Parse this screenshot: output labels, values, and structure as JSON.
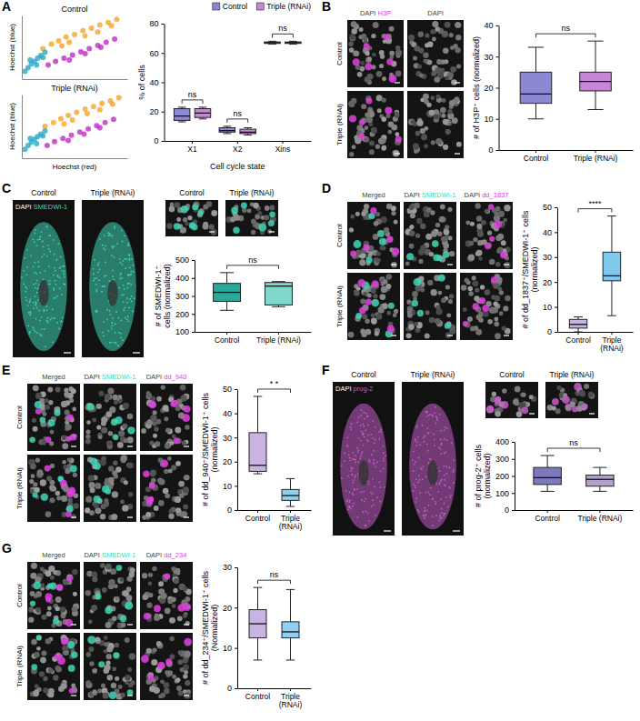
{
  "chart_data": [
    {
      "panel": "A",
      "type": "scatter",
      "title": "Control",
      "y_label": "Hoechst (blue)",
      "xlim": [
        0,
        100
      ],
      "ylim": [
        0,
        100
      ],
      "tick_labels": false,
      "series": [
        {
          "color": "#f4a52a",
          "x": [
            20,
            28,
            35,
            42,
            50,
            58,
            66,
            74,
            82,
            90,
            45,
            60,
            72,
            85,
            38
          ],
          "y": [
            48,
            55,
            60,
            66,
            70,
            76,
            80,
            85,
            89,
            94,
            58,
            68,
            74,
            84,
            52
          ]
        },
        {
          "color": "#2aa7c8",
          "x": [
            3,
            6,
            9,
            12,
            15,
            18,
            22,
            8,
            14,
            20
          ],
          "y": [
            12,
            18,
            24,
            28,
            33,
            37,
            42,
            30,
            22,
            34
          ]
        },
        {
          "color": "#c02cc6",
          "x": [
            25,
            32,
            40,
            48,
            56,
            64,
            72,
            80,
            88,
            45,
            60,
            75
          ],
          "y": [
            22,
            28,
            33,
            38,
            43,
            48,
            53,
            58,
            63,
            30,
            40,
            50
          ]
        }
      ]
    },
    {
      "type": "scatter",
      "title": "Triple (RNAi)",
      "y_label": "Hoechst (blue)",
      "x_label": "Hoechst (red)",
      "xlim": [
        0,
        100
      ],
      "ylim": [
        0,
        100
      ],
      "tick_labels": false,
      "series": [
        {
          "color": "#f4a52a",
          "x": [
            22,
            30,
            37,
            44,
            52,
            60,
            68,
            76,
            84,
            92,
            48,
            62,
            74,
            86,
            40
          ],
          "y": [
            50,
            56,
            62,
            67,
            72,
            77,
            81,
            86,
            90,
            95,
            60,
            70,
            76,
            85,
            54
          ]
        },
        {
          "color": "#2aa7c8",
          "x": [
            3,
            6,
            9,
            12,
            15,
            18,
            22,
            8,
            14,
            20
          ],
          "y": [
            14,
            20,
            25,
            30,
            34,
            38,
            43,
            31,
            23,
            35
          ]
        },
        {
          "color": "#c02cc6",
          "x": [
            24,
            31,
            39,
            47,
            55,
            63,
            71,
            79,
            87,
            44,
            59,
            74
          ],
          "y": [
            20,
            26,
            31,
            36,
            41,
            46,
            51,
            56,
            61,
            28,
            38,
            48
          ]
        }
      ]
    },
    {
      "type": "box",
      "y_label": "% of cells",
      "x_label": "Cell cycle state",
      "categories": [
        "X1",
        "X2",
        "Xins"
      ],
      "ylim": [
        0,
        80
      ],
      "yticks": [
        0,
        20,
        40,
        60,
        80
      ],
      "legend": "top-right",
      "series": [
        {
          "name": "Control",
          "color": "#8c88d4",
          "min": [
            13,
            5,
            66
          ],
          "q1": [
            14,
            6,
            66.5
          ],
          "median": [
            17,
            7,
            67
          ],
          "q3": [
            22,
            9,
            67.5
          ],
          "max": [
            23,
            10,
            68
          ]
        },
        {
          "name": "Triple (RNAi)",
          "color": "#c886d8",
          "min": [
            15,
            4,
            66
          ],
          "q1": [
            16,
            5,
            66.5
          ],
          "median": [
            19,
            6,
            67
          ],
          "q3": [
            22,
            8,
            67.5
          ],
          "max": [
            23,
            9,
            68
          ]
        }
      ],
      "significance": [
        "ns",
        "ns",
        "ns"
      ]
    },
    {
      "panel": "B",
      "type": "box",
      "images": {
        "columns": [
          "DAPI H3P",
          "DAPI"
        ],
        "rows": [
          "Control",
          "Triple (RNAi)"
        ]
      },
      "y_label": "# of H3P⁺ cells (normalized)",
      "categories": [
        "Control",
        "Triple (RNAi)"
      ],
      "ylim": [
        0,
        40
      ],
      "yticks": [
        0,
        10,
        20,
        30,
        40
      ],
      "series": [
        {
          "colors": [
            "#8c88d4",
            "#c886d8"
          ],
          "min": [
            10,
            13
          ],
          "q1": [
            15,
            19
          ],
          "median": [
            18,
            22
          ],
          "q3": [
            25,
            25
          ],
          "max": [
            33,
            35
          ]
        }
      ],
      "significance": [
        "ns"
      ]
    },
    {
      "panel": "C",
      "type": "box",
      "worms": {
        "titles": [
          "Control",
          "Triple (RNAi)"
        ],
        "stain": "DAPI SMEDWI-1"
      },
      "crops": {
        "titles": [
          "Control",
          "Triple (RNAi)"
        ]
      },
      "y_label": "# of SMEDWI-1⁺ cells (normalized)",
      "categories": [
        "Control",
        "Triple (RNAi)"
      ],
      "ylim": [
        100,
        500
      ],
      "yticks": [
        100,
        200,
        300,
        400,
        500
      ],
      "series": [
        {
          "colors": [
            "#2aa89a",
            "#7fd8cc"
          ],
          "min": [
            220,
            240
          ],
          "q1": [
            270,
            250
          ],
          "median": [
            320,
            355
          ],
          "q3": [
            370,
            375
          ],
          "max": [
            430,
            380
          ]
        }
      ],
      "significance": [
        "ns"
      ]
    },
    {
      "panel": "D",
      "type": "box",
      "images": {
        "columns": [
          "Merged",
          "DAPI SMEDWI-1",
          "DAPI dd_1837"
        ],
        "rows": [
          "Control",
          "Triple (RNAi)"
        ]
      },
      "y_label": "# of dd_1837⁺/SMEDWI-1⁺ cells (normalized)",
      "categories": [
        "Control",
        "Triple (RNAi)"
      ],
      "ylim": [
        0,
        50
      ],
      "yticks": [
        0,
        10,
        20,
        30,
        40,
        50
      ],
      "series": [
        {
          "colors": [
            "#c4b3e3",
            "#7fc9ef"
          ],
          "min": [
            0,
            6.5
          ],
          "q1": [
            1.5,
            20.5
          ],
          "median": [
            3,
            22.5
          ],
          "q3": [
            5,
            32
          ],
          "max": [
            6,
            46.5
          ]
        }
      ],
      "significance": [
        "****"
      ]
    },
    {
      "panel": "E",
      "type": "box",
      "images": {
        "columns": [
          "Merged",
          "DAPI SMEDWI-1",
          "DAPI dd_940"
        ],
        "rows": [
          "Control",
          "Triple (RNAi)"
        ]
      },
      "y_label": "# of dd_940⁺/SMEDWI-1⁺ cells (normalized)",
      "categories": [
        "Control",
        "Triple (RNAi)"
      ],
      "ylim": [
        0,
        50
      ],
      "yticks": [
        0,
        10,
        20,
        30,
        40,
        50
      ],
      "series": [
        {
          "colors": [
            "#c9b3e2",
            "#8fd0f2"
          ],
          "min": [
            15,
            1.5
          ],
          "q1": [
            16,
            4
          ],
          "median": [
            18.5,
            6
          ],
          "q3": [
            32,
            8.5
          ],
          "max": [
            47,
            13
          ]
        }
      ],
      "significance": [
        "* *"
      ]
    },
    {
      "panel": "F",
      "type": "box",
      "worms": {
        "titles": [
          "Control",
          "Triple (RNAi)"
        ],
        "stain": "DAPI prog-2"
      },
      "crops": {
        "titles": [
          "Control",
          "Triple (RNAi)"
        ]
      },
      "y_label": "# of prog-2⁺ cells (normalized)",
      "categories": [
        "Control",
        "Triple (RNAi)"
      ],
      "ylim": [
        0,
        400
      ],
      "yticks": [
        0,
        100,
        200,
        300,
        400
      ],
      "series": [
        {
          "colors": [
            "#7d79be",
            "#b3a2cd"
          ],
          "min": [
            110,
            110
          ],
          "q1": [
            150,
            140
          ],
          "median": [
            190,
            180
          ],
          "q3": [
            250,
            205
          ],
          "max": [
            320,
            250
          ]
        }
      ],
      "significance": [
        "ns"
      ]
    },
    {
      "panel": "G",
      "type": "box",
      "images": {
        "columns": [
          "Merged",
          "DAPI SMEDWI-1",
          "DAPI dd_234"
        ],
        "rows": [
          "Control",
          "Triple (RNAi)"
        ]
      },
      "y_label": "# of dd_234⁺/SMEDWI-1⁺ cells (Normalized)",
      "categories": [
        "Control",
        "Triple (RNAi)"
      ],
      "ylim": [
        0,
        30
      ],
      "yticks": [
        0,
        10,
        20,
        30
      ],
      "series": [
        {
          "colors": [
            "#c9b3e2",
            "#8fd0f2"
          ],
          "min": [
            7,
            7
          ],
          "q1": [
            12.5,
            12.5
          ],
          "median": [
            16,
            14
          ],
          "q3": [
            19.5,
            16.5
          ],
          "max": [
            25,
            24.5
          ]
        }
      ],
      "significance": [
        "ns"
      ]
    }
  ]
}
